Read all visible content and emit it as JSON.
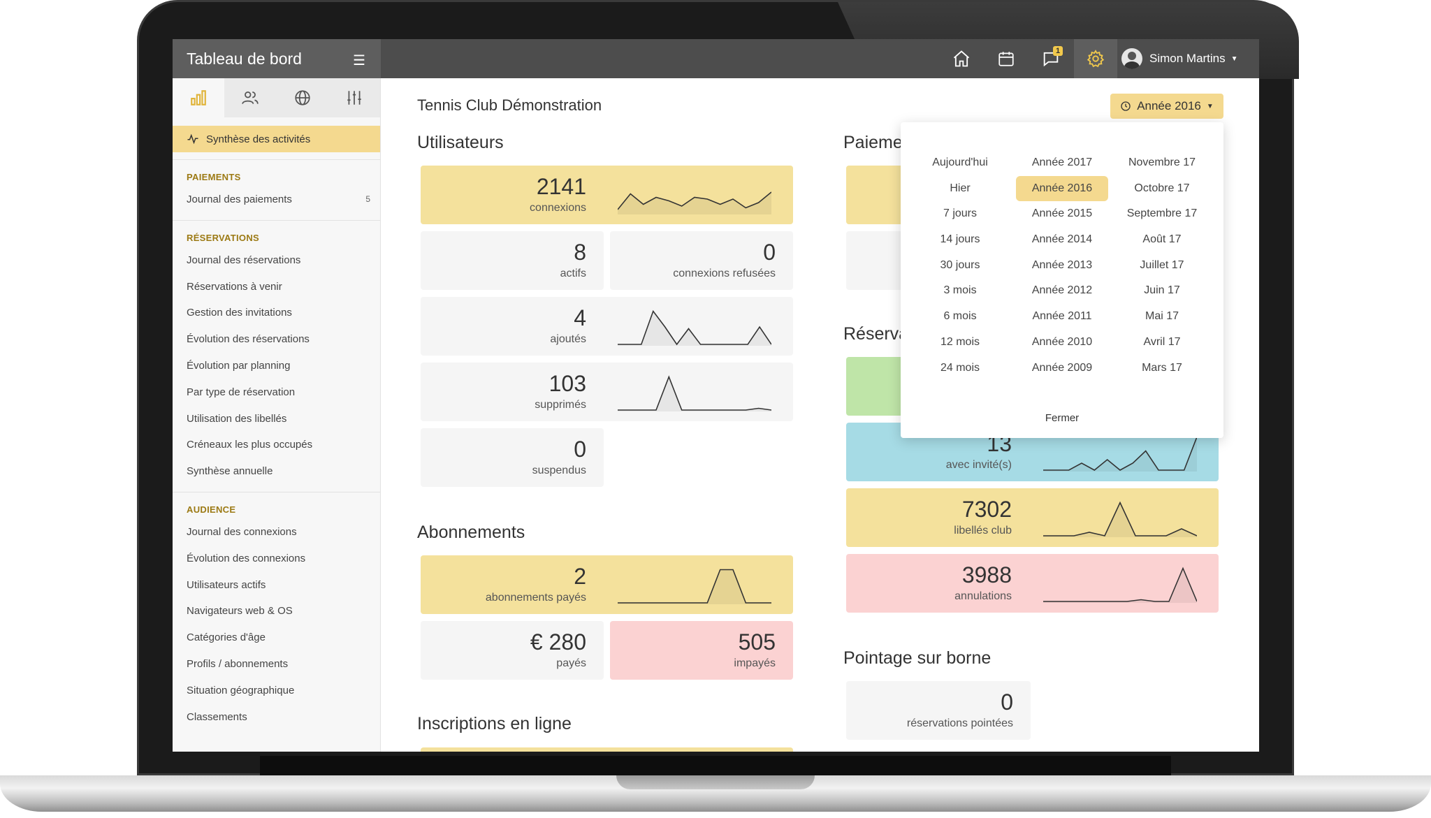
{
  "topbar": {
    "brand_title": "Tableau de bord",
    "menu_icon": "hamburger-icon",
    "icons": [
      "home-icon",
      "calendar-icon",
      "chat-icon",
      "gear-icon"
    ],
    "notification_count": "1",
    "user_name": "Simon Martins"
  },
  "sidebar": {
    "tabs": [
      "bar-chart-icon",
      "users-icon",
      "globe-icon",
      "sliders-icon"
    ],
    "active_item": "Synthèse des activités",
    "sections": [
      {
        "heading": "PAIEMENTS",
        "items": [
          {
            "label": "Journal des paiements",
            "count": "5"
          }
        ]
      },
      {
        "heading": "RÉSERVATIONS",
        "items": [
          {
            "label": "Journal des réservations"
          },
          {
            "label": "Réservations à venir"
          },
          {
            "label": "Gestion des invitations"
          },
          {
            "label": "Évolution des réservations"
          },
          {
            "label": "Évolution par planning"
          },
          {
            "label": "Par type de réservation"
          },
          {
            "label": "Utilisation des libellés"
          },
          {
            "label": "Créneaux les plus occupés"
          },
          {
            "label": "Synthèse annuelle"
          }
        ]
      },
      {
        "heading": "AUDIENCE",
        "items": [
          {
            "label": "Journal des connexions"
          },
          {
            "label": "Évolution des connexions"
          },
          {
            "label": "Utilisateurs actifs"
          },
          {
            "label": "Navigateurs web & OS"
          },
          {
            "label": "Catégories d'âge"
          },
          {
            "label": "Profils / abonnements"
          },
          {
            "label": "Situation géographique"
          },
          {
            "label": "Classements"
          }
        ]
      }
    ]
  },
  "main": {
    "club_title": "Tennis Club Démonstration",
    "year_button": "Année 2016",
    "sections": {
      "users": "Utilisateurs",
      "subscriptions": "Abonnements",
      "online": "Inscriptions en ligne",
      "payments": "Paieme",
      "reservations": "Réserva",
      "terminal": "Pointage sur borne"
    },
    "cards": {
      "connexions": {
        "value": "2141",
        "label": "connexions",
        "spark": [
          10,
          55,
          25,
          45,
          35,
          20,
          45,
          40,
          25,
          40,
          15,
          30,
          60
        ]
      },
      "actifs": {
        "value": "8",
        "label": "actifs"
      },
      "refusees": {
        "value": "0",
        "label": "connexions refusées"
      },
      "ajoutes": {
        "value": "4",
        "label": "ajoutés",
        "spark": [
          0,
          0,
          0,
          95,
          50,
          0,
          45,
          0,
          0,
          0,
          0,
          0,
          50,
          0
        ]
      },
      "supprimes": {
        "value": "103",
        "label": "supprimés",
        "spark": [
          0,
          0,
          0,
          0,
          95,
          0,
          0,
          0,
          0,
          0,
          0,
          5,
          0
        ]
      },
      "suspendus": {
        "value": "0",
        "label": "suspendus"
      },
      "abonnements_payes": {
        "value": "2",
        "label": "abonnements payés",
        "spark": [
          0,
          0,
          0,
          0,
          0,
          0,
          0,
          0,
          95,
          95,
          0,
          0,
          0
        ]
      },
      "payes": {
        "value": "€ 280",
        "label": "payés"
      },
      "impayes": {
        "value": "505",
        "label": "impayés"
      },
      "invites": {
        "value": "13",
        "label": "avec invité(s)",
        "spark": [
          0,
          0,
          0,
          20,
          0,
          30,
          0,
          20,
          55,
          0,
          0,
          0,
          95
        ]
      },
      "libelles": {
        "value": "7302",
        "label": "libellés club",
        "spark": [
          0,
          0,
          0,
          10,
          0,
          95,
          0,
          0,
          0,
          20,
          0
        ]
      },
      "annulations": {
        "value": "3988",
        "label": "annulations",
        "spark": [
          0,
          0,
          0,
          0,
          0,
          0,
          0,
          5,
          0,
          0,
          95,
          0
        ]
      },
      "pointees": {
        "value": "0",
        "label": "réservations pointées"
      }
    },
    "colors": {
      "yellow": "#f4e19c",
      "pink": "#fbd2d2",
      "green": "#bfe5a8",
      "blue": "#a6dbe5",
      "accent": "#f4d98f"
    }
  },
  "dropdown": {
    "col1": [
      "Aujourd'hui",
      "Hier",
      "7 jours",
      "14 jours",
      "30 jours",
      "3 mois",
      "6 mois",
      "12 mois",
      "24 mois"
    ],
    "col2": [
      "Année 2017",
      "Année 2016",
      "Année 2015",
      "Année 2014",
      "Année 2013",
      "Année 2012",
      "Année 2011",
      "Année 2010",
      "Année 2009"
    ],
    "col3": [
      "Novembre 17",
      "Octobre 17",
      "Septembre 17",
      "Août 17",
      "Juillet 17",
      "Juin 17",
      "Mai 17",
      "Avril 17",
      "Mars 17"
    ],
    "selected": "Année 2016",
    "close_label": "Fermer"
  }
}
